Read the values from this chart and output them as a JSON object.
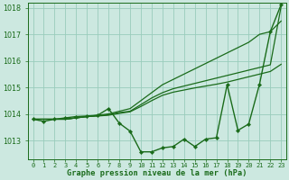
{
  "title": "Graphe pression niveau de la mer (hPa)",
  "background_color": "#cce8e0",
  "grid_color": "#99ccbb",
  "line_color": "#1a6b1a",
  "ylim": [
    1012.3,
    1018.2
  ],
  "yticks": [
    1013,
    1014,
    1015,
    1016,
    1017,
    1018
  ],
  "n_hours": 24,
  "line_upper": [
    1013.8,
    1013.8,
    1013.8,
    1013.8,
    1013.85,
    1013.9,
    1013.95,
    1014.0,
    1014.1,
    1014.2,
    1014.5,
    1014.8,
    1015.1,
    1015.3,
    1015.5,
    1015.7,
    1015.9,
    1016.1,
    1016.3,
    1016.5,
    1016.7,
    1017.0,
    1017.1,
    1017.5
  ],
  "line_mid1": [
    1013.8,
    1013.8,
    1013.8,
    1013.8,
    1013.85,
    1013.9,
    1013.93,
    1013.97,
    1014.05,
    1014.1,
    1014.35,
    1014.6,
    1014.8,
    1014.95,
    1015.05,
    1015.15,
    1015.25,
    1015.35,
    1015.45,
    1015.55,
    1015.65,
    1015.75,
    1015.85,
    1018.05
  ],
  "line_mid2": [
    1013.8,
    1013.8,
    1013.8,
    1013.8,
    1013.85,
    1013.9,
    1013.92,
    1013.95,
    1014.02,
    1014.08,
    1014.28,
    1014.5,
    1014.7,
    1014.82,
    1014.9,
    1014.98,
    1015.05,
    1015.12,
    1015.2,
    1015.3,
    1015.4,
    1015.5,
    1015.6,
    1015.87
  ],
  "line_marker": [
    1013.8,
    1013.72,
    1013.8,
    1013.85,
    1013.9,
    1013.92,
    1013.95,
    1014.2,
    1013.65,
    1013.35,
    1012.57,
    1012.57,
    1012.72,
    1012.77,
    1013.05,
    1012.77,
    1013.05,
    1013.1,
    1015.1,
    1013.38,
    1013.62,
    1015.12,
    1017.1,
    1018.12
  ]
}
